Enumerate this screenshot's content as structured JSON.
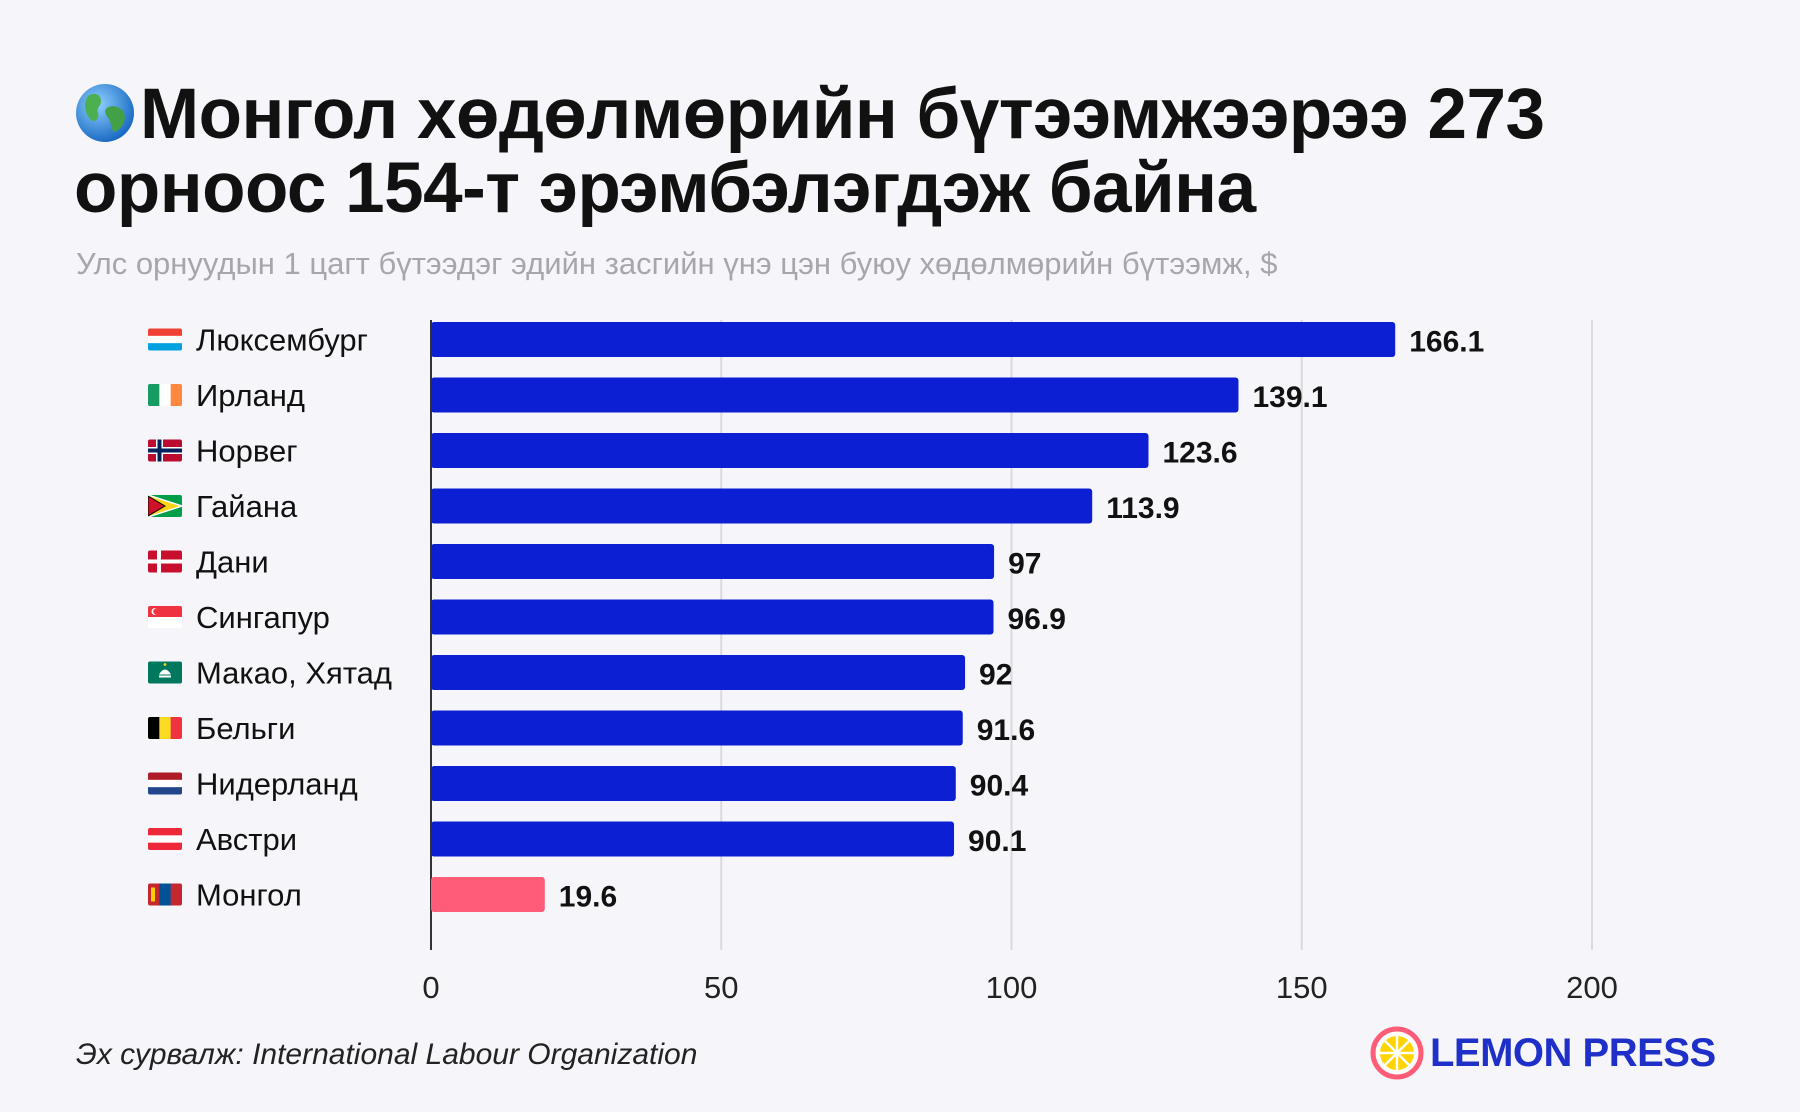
{
  "title_text": "Монгол хөдөлмөрийн бүтээмжээрээ 273 орноос 154-т эрэмбэлэгдэж байна",
  "subtitle": "Улс орнуудын 1 цагт бүтээдэг эдийн засгийн үнэ цэн буюу хөдөлмөрийн бүтээмж, $",
  "source": "Эх сурвалж: International Labour Organization",
  "brand": "LEMON PRESS",
  "colors": {
    "bar": "#0c1fd2",
    "highlight": "#ff5c78",
    "brand": "#1e30c8"
  },
  "chart_data": {
    "type": "bar",
    "orientation": "horizontal",
    "categories": [
      "Люксембург",
      "Ирланд",
      "Норвег",
      "Гайана",
      "Дани",
      "Сингапур",
      "Макао, Хятад",
      "Бельги",
      "Нидерланд",
      "Австри",
      "Монгол"
    ],
    "values": [
      166.1,
      139.1,
      123.6,
      113.9,
      97,
      96.9,
      92,
      91.6,
      90.4,
      90.1,
      19.6
    ],
    "value_labels": [
      "166.1",
      "139.1",
      "123.6",
      "113.9",
      "97",
      "96.9",
      "92",
      "91.6",
      "90.4",
      "90.1",
      "19.6"
    ],
    "flags": [
      "luxembourg-flag-icon",
      "ireland-flag-icon",
      "norway-flag-icon",
      "guyana-flag-icon",
      "denmark-flag-icon",
      "singapore-flag-icon",
      "macao-flag-icon",
      "belgium-flag-icon",
      "netherlands-flag-icon",
      "austria-flag-icon",
      "mongolia-flag-icon"
    ],
    "highlight": "Монгол",
    "xlim": [
      0,
      200
    ],
    "xticks": [
      0,
      50,
      100,
      150,
      200
    ],
    "grid": true
  }
}
